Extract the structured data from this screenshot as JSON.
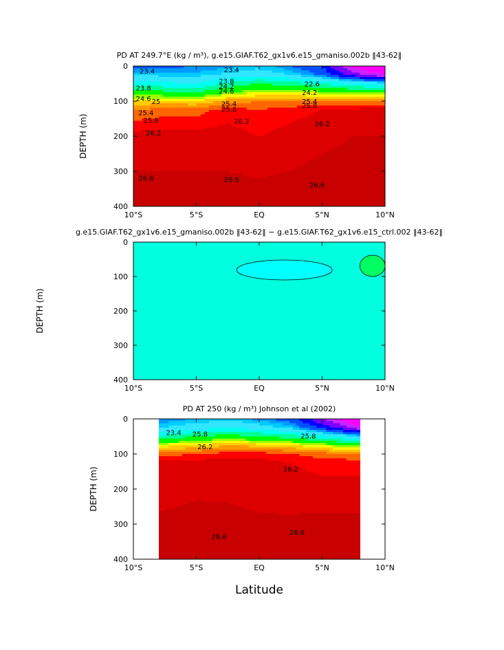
{
  "figure": {
    "xlabel": "Latitude",
    "ylabel": "DEPTH (m)",
    "x_ticks": [
      "10°S",
      "5°S",
      "EQ",
      "5°N",
      "10°N"
    ],
    "y_ticks": [
      "0",
      "100",
      "200",
      "300",
      "400"
    ]
  },
  "chart_data": [
    {
      "type": "heatmap",
      "title": "PD AT 249.7°E (kg / m³), g.e15.GIAF.T62_gx1v6.e15_gmaniso.002b ‖43-62‖",
      "xlabel": "",
      "ylabel": "DEPTH (m)",
      "xlim": [
        -10,
        10
      ],
      "ylim": [
        400,
        0
      ],
      "x_ticks": [
        "10°S",
        "5°S",
        "EQ",
        "5°N",
        "10°N"
      ],
      "y_ticks": [
        0,
        100,
        200,
        300,
        400
      ],
      "color_ramp": [
        "#ff00ff",
        "#cc22ff",
        "#7a00ff",
        "#0000ff",
        "#0050ff",
        "#0099ff",
        "#00ccff",
        "#33e6ff",
        "#00ffee",
        "#00ff99",
        "#00ff00",
        "#99ff00",
        "#ffff00",
        "#ffcc00",
        "#ff9900",
        "#ff6600",
        "#ff0000",
        "#dd0000",
        "#c80000"
      ],
      "profiles": [
        {
          "lat": -10,
          "values": [
            22.8,
            23.4,
            24.0,
            24.8,
            25.4,
            25.8,
            26.3,
            26.5,
            26.75
          ]
        },
        {
          "lat": -7.5,
          "values": [
            22.9,
            23.3,
            23.9,
            24.7,
            25.5,
            25.9,
            26.3,
            26.5,
            26.75
          ]
        },
        {
          "lat": -5,
          "values": [
            23.0,
            23.3,
            23.8,
            24.6,
            25.4,
            25.9,
            26.3,
            26.5,
            26.75
          ]
        },
        {
          "lat": -2.5,
          "values": [
            23.1,
            23.5,
            24.3,
            25.0,
            25.7,
            26.1,
            26.3,
            26.5,
            26.7
          ]
        },
        {
          "lat": 0,
          "values": [
            23.3,
            23.6,
            24.6,
            25.2,
            25.8,
            26.0,
            26.2,
            26.45,
            26.7
          ]
        },
        {
          "lat": 2.5,
          "values": [
            23.0,
            23.4,
            24.4,
            25.2,
            25.8,
            26.1,
            26.3,
            26.5,
            26.75
          ]
        },
        {
          "lat": 5,
          "values": [
            22.6,
            22.9,
            24.2,
            25.1,
            25.8,
            26.2,
            26.4,
            26.6,
            26.8
          ]
        },
        {
          "lat": 7.5,
          "values": [
            21.2,
            22.0,
            23.8,
            25.0,
            25.8,
            26.25,
            26.5,
            26.65,
            26.8
          ]
        },
        {
          "lat": 10,
          "values": [
            20.6,
            21.4,
            23.6,
            24.9,
            25.8,
            26.3,
            26.5,
            26.7,
            26.85
          ]
        }
      ],
      "depths": [
        0,
        25,
        50,
        75,
        100,
        125,
        200,
        300,
        400
      ],
      "contour_labels": [
        "23.4",
        "23.8",
        "24.2",
        "24.6",
        "25",
        "25.4",
        "25.8",
        "26.2",
        "26.6",
        "22.6"
      ]
    },
    {
      "type": "heatmap",
      "title": "g.e15.GIAF.T62_gx1v6.e15_gmaniso.002b ‖43-62‖ − g.e15.GIAF.T62_gx1v6.e15_ctrl.002 ‖43-62‖",
      "xlabel": "",
      "ylabel": "DEPTH (m)",
      "xlim": [
        -10,
        10
      ],
      "ylim": [
        400,
        0
      ],
      "x_ticks": [
        "10°S",
        "5°S",
        "EQ",
        "5°N",
        "10°N"
      ],
      "y_ticks": [
        0,
        100,
        200,
        300,
        400
      ],
      "background_color": "#00ffde",
      "regions": [
        {
          "color": "#00ffff",
          "lat_range": [
            -1.8,
            5.8
          ],
          "depth_range": [
            52,
            110
          ]
        },
        {
          "color": "#00ff60",
          "lat_range": [
            8.0,
            10.0
          ],
          "depth_range": [
            38,
            100
          ]
        }
      ]
    },
    {
      "type": "heatmap",
      "title": "PD AT 250 (kg / m³) Johnson et al (2002)",
      "xlabel": "Latitude",
      "ylabel": "DEPTH (m)",
      "xlim": [
        -10,
        10
      ],
      "ylim": [
        400,
        0
      ],
      "data_lat_range": [
        -8,
        8
      ],
      "data_depth_range": [
        0,
        400
      ],
      "x_ticks": [
        "10°S",
        "5°S",
        "EQ",
        "5°N",
        "10°N"
      ],
      "y_ticks": [
        0,
        100,
        200,
        300,
        400
      ],
      "profiles": [
        {
          "lat": -8,
          "values": [
            23.0,
            23.4,
            24.2,
            25.3,
            25.9,
            26.25,
            26.4,
            26.55,
            26.7
          ]
        },
        {
          "lat": -5,
          "values": [
            23.2,
            23.6,
            24.6,
            25.4,
            26.0,
            26.3,
            26.45,
            26.6,
            26.7
          ]
        },
        {
          "lat": -2.5,
          "values": [
            23.3,
            23.8,
            24.8,
            25.6,
            26.1,
            26.3,
            26.45,
            26.58,
            26.7
          ]
        },
        {
          "lat": 0,
          "values": [
            23.1,
            23.6,
            24.6,
            25.5,
            26.1,
            26.3,
            26.4,
            26.55,
            26.7
          ]
        },
        {
          "lat": 2.5,
          "values": [
            22.8,
            23.3,
            24.4,
            25.4,
            26.0,
            26.2,
            26.35,
            26.55,
            26.7
          ]
        },
        {
          "lat": 5,
          "values": [
            21.8,
            22.5,
            24.0,
            25.2,
            25.9,
            26.1,
            26.3,
            26.6,
            26.75
          ]
        },
        {
          "lat": 8,
          "values": [
            20.8,
            21.5,
            23.4,
            24.9,
            25.8,
            26.1,
            26.3,
            26.6,
            26.75
          ]
        }
      ],
      "depths": [
        0,
        25,
        50,
        75,
        100,
        125,
        200,
        300,
        400
      ],
      "contour_labels": [
        "23.4",
        "25.8",
        "26.2",
        "26.6"
      ]
    }
  ]
}
